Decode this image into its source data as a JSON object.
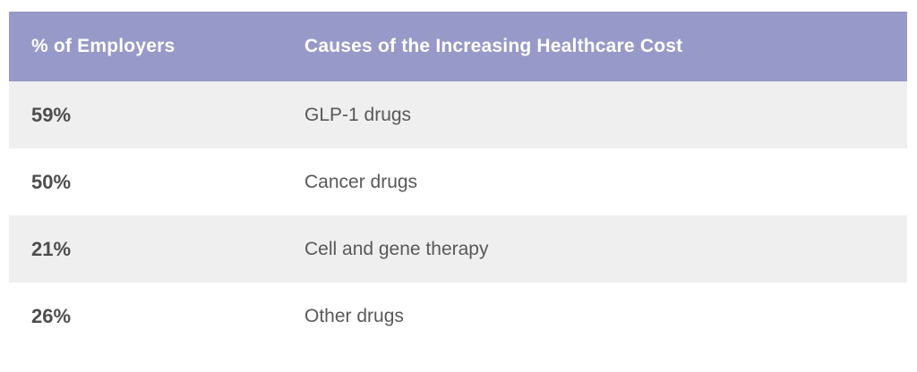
{
  "chart_data": {
    "type": "table",
    "title": "",
    "columns": [
      "% of Employers",
      "Causes of the Increasing Healthcare Cost"
    ],
    "categories": [
      "GLP-1 drugs",
      "Cancer drugs",
      "Cell and gene therapy",
      "Other drugs"
    ],
    "values": [
      59,
      50,
      21,
      26
    ],
    "rows": [
      [
        "59%",
        "GLP-1 drugs"
      ],
      [
        "50%",
        "Cancer drugs"
      ],
      [
        "21%",
        "Cell and gene therapy"
      ],
      [
        "26%",
        "Other drugs"
      ]
    ]
  },
  "table": {
    "header": {
      "percent_label": "% of Employers",
      "cause_label": "Causes of the Increasing Healthcare Cost"
    },
    "rows": [
      {
        "percent": "59%",
        "cause": "GLP-1 drugs"
      },
      {
        "percent": "50%",
        "cause": "Cancer drugs"
      },
      {
        "percent": "21%",
        "cause": "Cell and gene therapy"
      },
      {
        "percent": "26%",
        "cause": "Other drugs"
      }
    ],
    "colors": {
      "header_bg": "#9799c8",
      "header_text": "#ffffff",
      "row_alt_bg": "#efefef",
      "row_bg": "#ffffff",
      "percent_text": "#4d4d4f",
      "cause_text": "#58585a"
    }
  }
}
